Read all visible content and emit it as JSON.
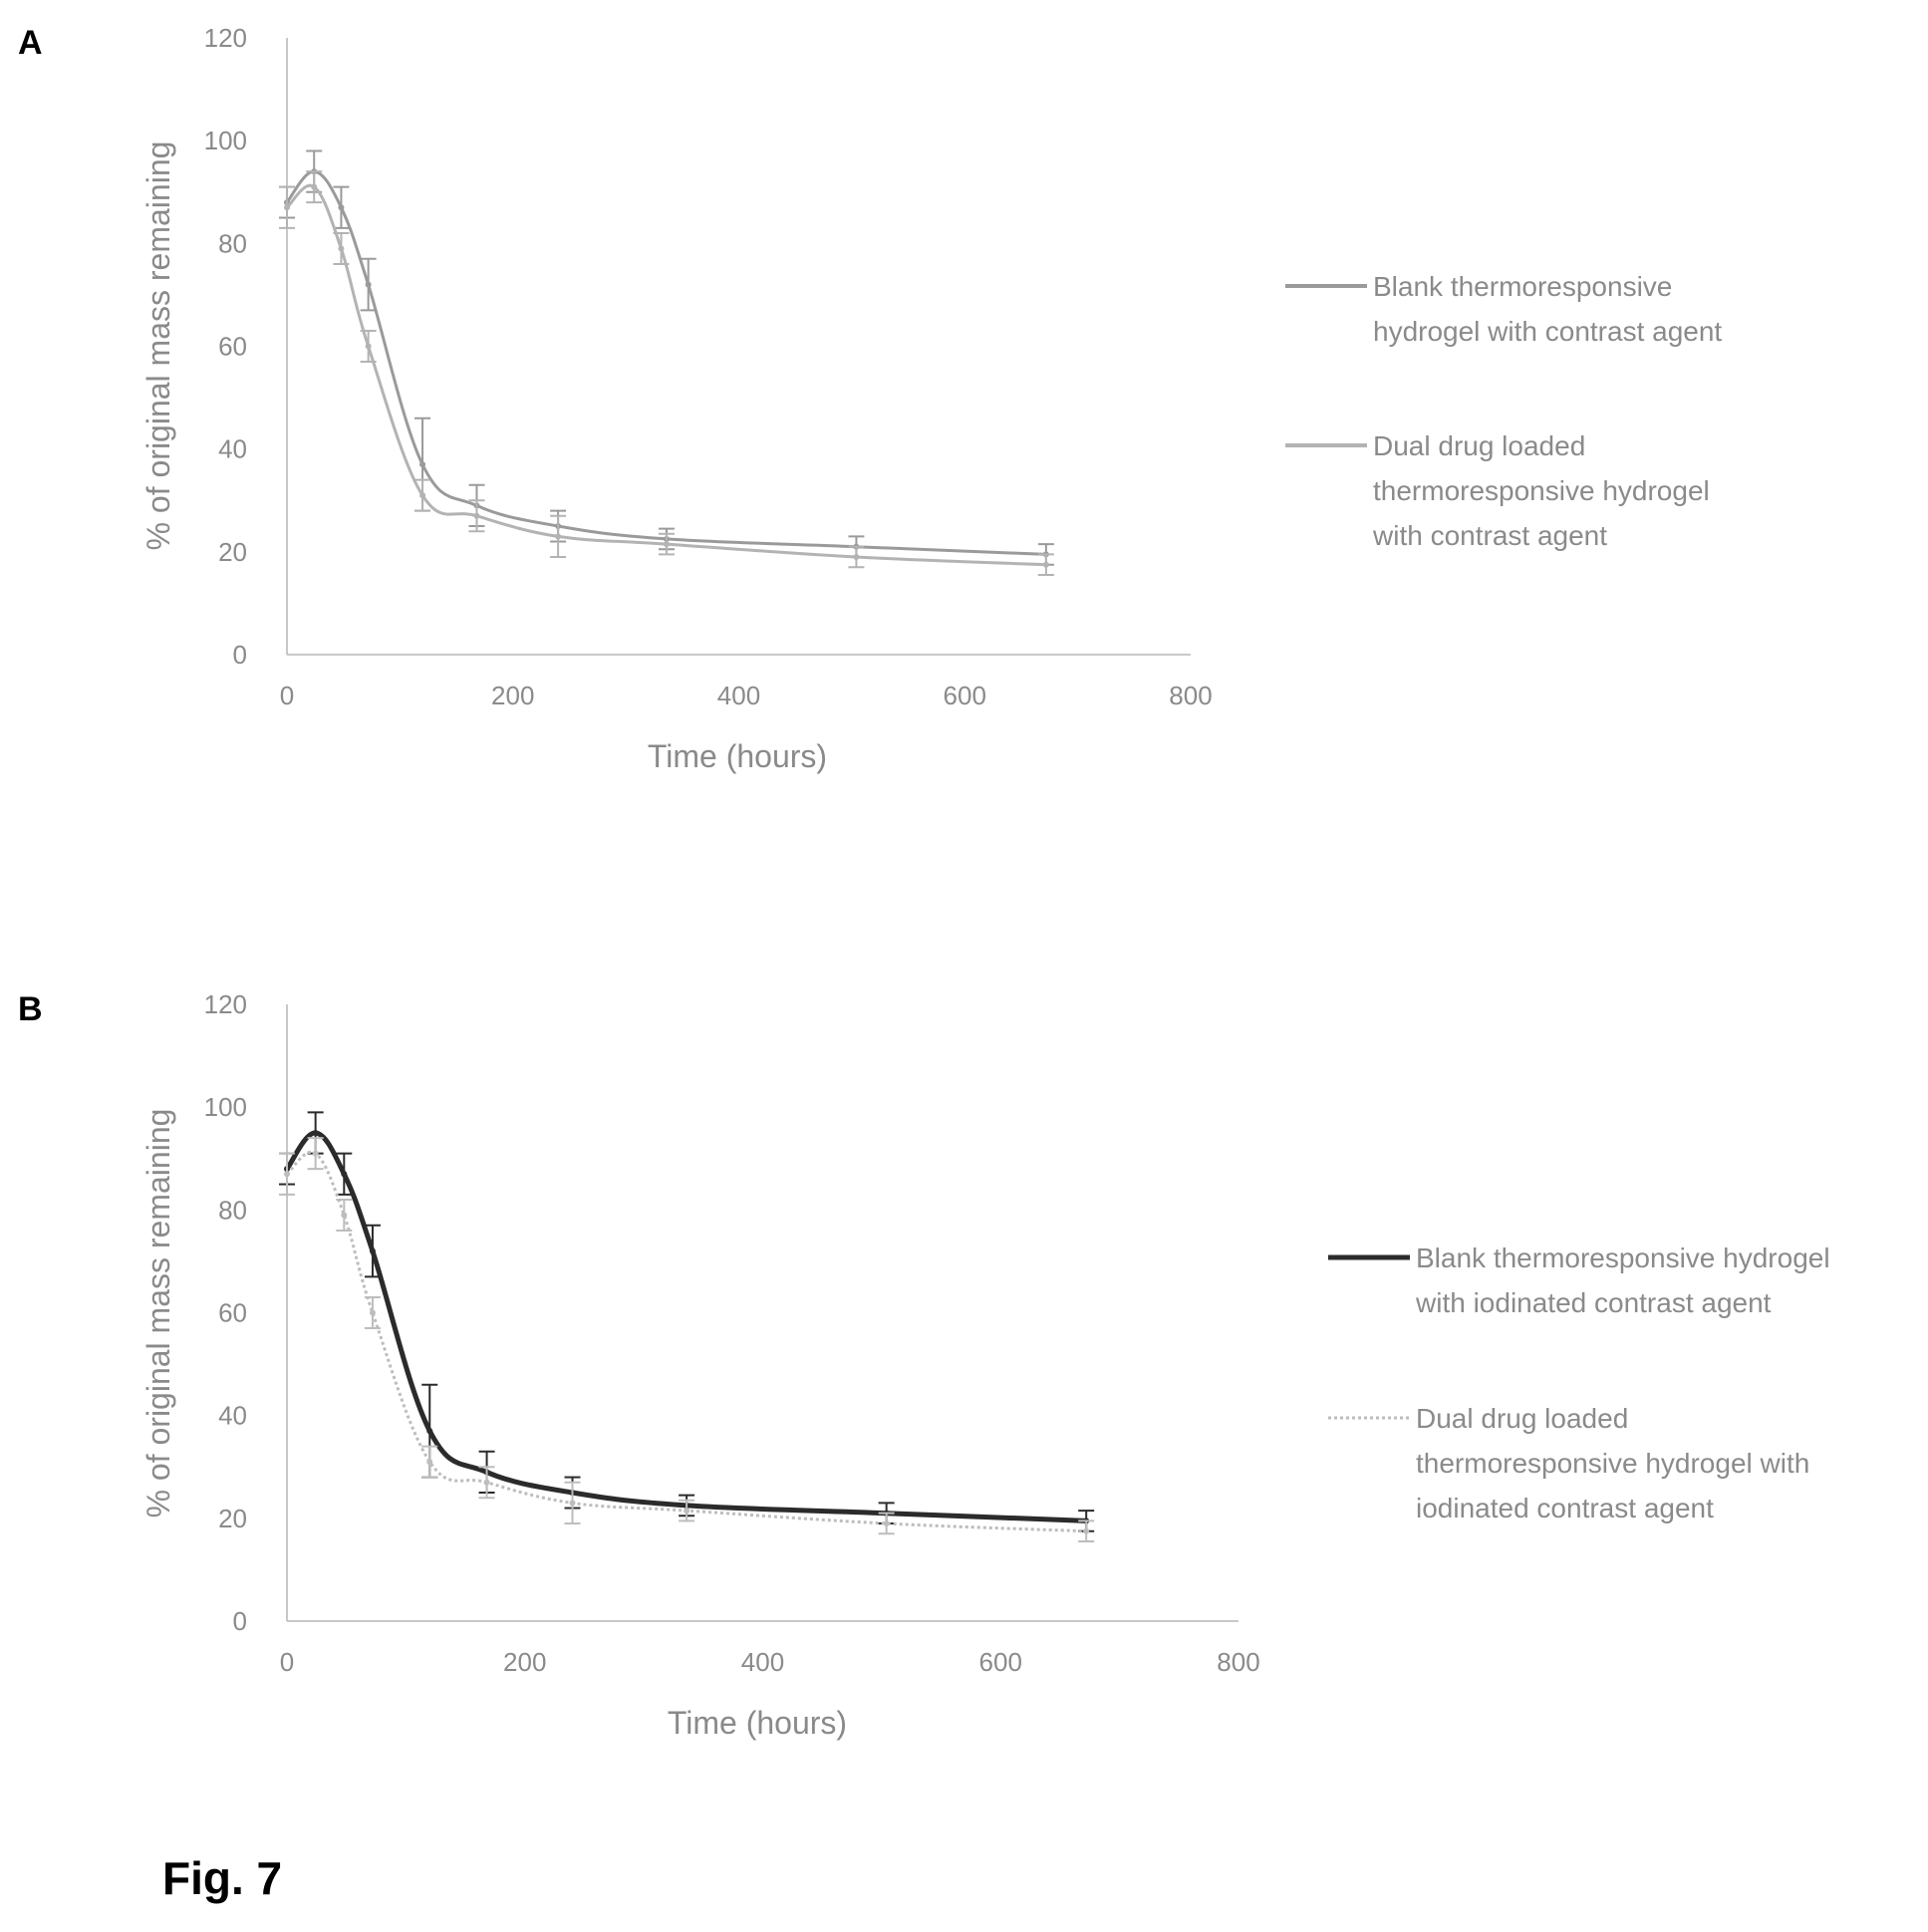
{
  "figure_label": "Fig. 7",
  "chart_data": [
    {
      "panel": "A",
      "type": "line",
      "xlabel": "Time (hours)",
      "ylabel": "% of original mass remaining",
      "xlim": [
        0,
        800
      ],
      "ylim": [
        0,
        120
      ],
      "x_ticks": [
        "0",
        "200",
        "400",
        "600",
        "800"
      ],
      "y_ticks": [
        "0",
        "20",
        "40",
        "60",
        "80",
        "100",
        "120"
      ],
      "grid": false,
      "legend_position": "right",
      "x": [
        0,
        24,
        48,
        72,
        120,
        168,
        240,
        336,
        504,
        672
      ],
      "series": [
        {
          "name": "Blank thermoresponsive hydrogel with contrast agent",
          "color": "#9a9a9a",
          "style": "solid",
          "values": [
            88,
            94,
            87,
            72,
            37,
            29,
            25,
            22.5,
            21,
            19.5
          ],
          "errors": [
            3,
            4,
            4,
            5,
            9,
            4,
            3,
            2,
            2,
            2
          ]
        },
        {
          "name": "Dual drug loaded thermoresponsive hydrogel with contrast agent",
          "color": "#b3b3b3",
          "style": "solid",
          "values": [
            87,
            91,
            79,
            60,
            31,
            27,
            23,
            21.5,
            19,
            17.5
          ],
          "errors": [
            4,
            3,
            3,
            3,
            3,
            3,
            4,
            2,
            2,
            2
          ]
        }
      ]
    },
    {
      "panel": "B",
      "type": "line",
      "xlabel": "Time (hours)",
      "ylabel": "% of original mass remaining",
      "xlim": [
        0,
        800
      ],
      "ylim": [
        0,
        120
      ],
      "x_ticks": [
        "0",
        "200",
        "400",
        "600",
        "800"
      ],
      "y_ticks": [
        "0",
        "20",
        "40",
        "60",
        "80",
        "100",
        "120"
      ],
      "grid": false,
      "legend_position": "right",
      "x": [
        0,
        24,
        48,
        72,
        120,
        168,
        240,
        336,
        504,
        672
      ],
      "series": [
        {
          "name": "Blank thermoresponsive hydrogel with iodinated contrast agent",
          "color": "#2b2b2b",
          "style": "solid",
          "values": [
            88,
            95,
            87,
            72,
            37,
            29,
            25,
            22.5,
            21,
            19.5
          ],
          "errors": [
            3,
            4,
            4,
            5,
            9,
            4,
            3,
            2,
            2,
            2
          ]
        },
        {
          "name": "Dual drug loaded thermoresponsive hydrogel with iodinated contrast agent",
          "color": "#bdbdbd",
          "style": "dotted",
          "values": [
            87,
            91,
            79,
            60,
            31,
            27,
            23,
            21.5,
            19,
            17.5
          ],
          "errors": [
            4,
            3,
            3,
            3,
            3,
            3,
            4,
            2,
            2,
            2
          ]
        }
      ]
    }
  ]
}
